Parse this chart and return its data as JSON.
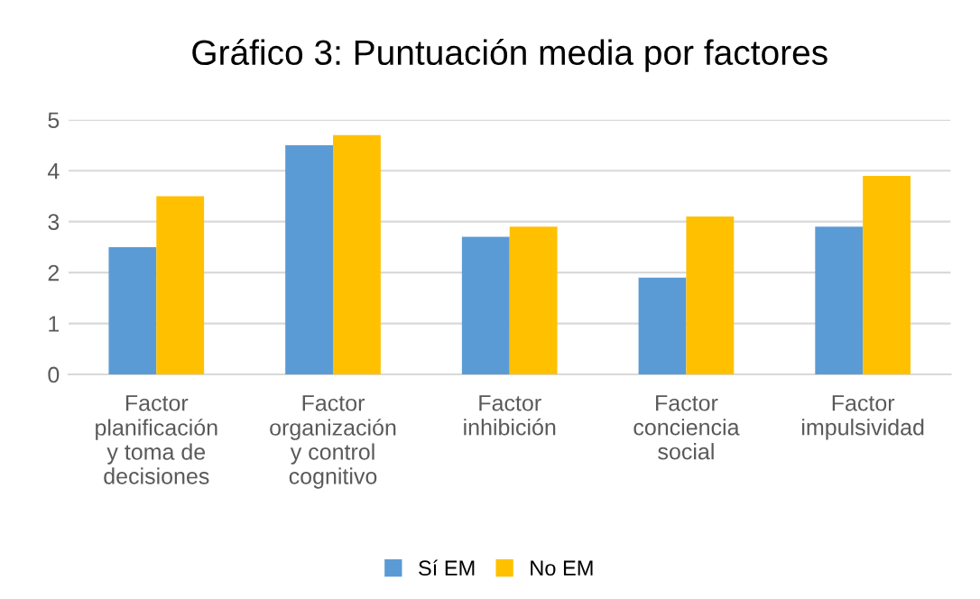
{
  "chart_data": {
    "type": "bar",
    "title": "Gráfico 3: Puntuación media por factores",
    "categories": [
      "Factor\nplanificación\ny toma de\ndecisiones",
      "Factor\norganización\ny control\ncognitivo",
      "Factor\ninhibición",
      "Factor\nconciencia\nsocial",
      "Factor\nimpulsividad"
    ],
    "series": [
      {
        "name": "Sí EM",
        "color": "#5b9bd5",
        "values": [
          2.5,
          4.5,
          2.7,
          1.9,
          2.9
        ]
      },
      {
        "name": "No EM",
        "color": "#ffc000",
        "values": [
          3.5,
          4.7,
          2.9,
          3.1,
          3.9
        ]
      }
    ],
    "ylim": [
      0,
      5
    ],
    "yticks": [
      0,
      1,
      2,
      3,
      4,
      5
    ],
    "grid": "y",
    "legend": "bottom"
  }
}
